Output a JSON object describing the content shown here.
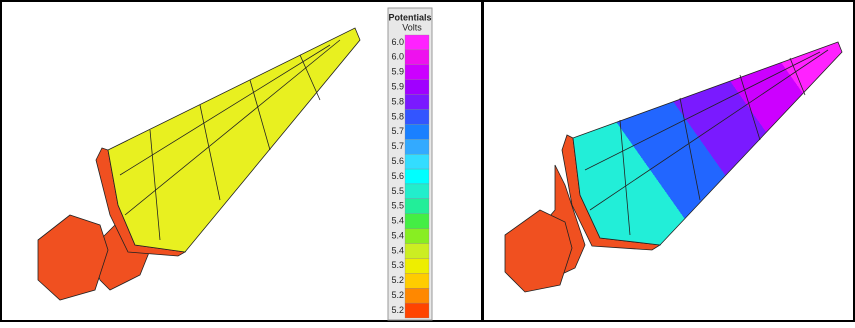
{
  "legend": {
    "title": "Potentials",
    "unit": "Volts",
    "entries": [
      {
        "label": "6.0",
        "color": "#ff22ff"
      },
      {
        "label": "6.0",
        "color": "#ee11ee"
      },
      {
        "label": "5.9",
        "color": "#cc00ff"
      },
      {
        "label": "5.9",
        "color": "#a000ff"
      },
      {
        "label": "5.8",
        "color": "#7a1aff"
      },
      {
        "label": "5.8",
        "color": "#3355ff"
      },
      {
        "label": "5.7",
        "color": "#1a80ff"
      },
      {
        "label": "5.7",
        "color": "#33aaff"
      },
      {
        "label": "5.6",
        "color": "#33ddff"
      },
      {
        "label": "5.6",
        "color": "#00ffff"
      },
      {
        "label": "5.5",
        "color": "#22eecc"
      },
      {
        "label": "5.5",
        "color": "#22ee99"
      },
      {
        "label": "5.4",
        "color": "#44ee44"
      },
      {
        "label": "5.4",
        "color": "#88ee22"
      },
      {
        "label": "5.4",
        "color": "#ccee22"
      },
      {
        "label": "5.3",
        "color": "#eeee00"
      },
      {
        "label": "5.2",
        "color": "#ffcc00"
      },
      {
        "label": "5.2",
        "color": "#ff8800"
      },
      {
        "label": "5.2",
        "color": "#ff4400"
      }
    ]
  }
}
